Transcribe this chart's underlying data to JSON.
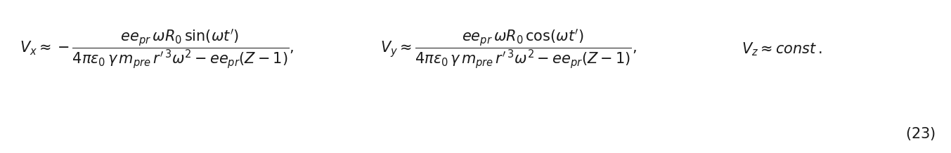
{
  "equation1": "$V_x \\approx -\\dfrac{ee_{pr}\\omega R_0 \\sin(\\omega t')}{4\\pi\\varepsilon_0\\gamma m_{pre} r'^{\\,3}\\omega^2 - ee_{pr}(Z-1)},$",
  "equation2": "$V_y \\approx \\dfrac{ee_{pr}\\omega R_0 \\cos(\\omega t')}{4\\pi\\varepsilon_0\\gamma m_{pre} r'^{\\,3}\\omega^2 - ee_{pr}(Z-1)},$",
  "equation3": "$V_z \\approx const\\,.$",
  "eq_number": "$(23)$",
  "background_color": "#ffffff",
  "text_color": "#1a1a1a",
  "fontsize": 15,
  "fig_width": 13.53,
  "fig_height": 2.18,
  "dpi": 100
}
